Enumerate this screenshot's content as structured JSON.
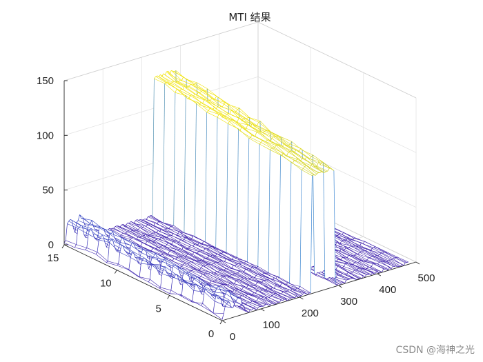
{
  "chart_data": {
    "type": "mesh3d",
    "title": "MTI 结果",
    "xlabel": "",
    "ylabel": "",
    "zlabel": "",
    "xlim": [
      0,
      500
    ],
    "ylim": [
      0,
      15
    ],
    "zlim": [
      0,
      150
    ],
    "x_ticks": [
      "0",
      "100",
      "200",
      "300",
      "400",
      "500"
    ],
    "y_ticks": [
      "0",
      "5",
      "10",
      "15"
    ],
    "z_ticks": [
      "0",
      "50",
      "100",
      "150"
    ],
    "grid": true,
    "colormap": [
      "#3c1aa8",
      "#2a7de8",
      "#f0e200"
    ],
    "pulses": 15,
    "range_bins": 480,
    "target": {
      "range_bins": [
        230,
        290
      ],
      "peak_amplitude": [
        128,
        108
      ],
      "residual_near_range": [
        32,
        22
      ]
    },
    "clutter_amplitude": 3
  },
  "watermark": "CSDN @海神之光"
}
